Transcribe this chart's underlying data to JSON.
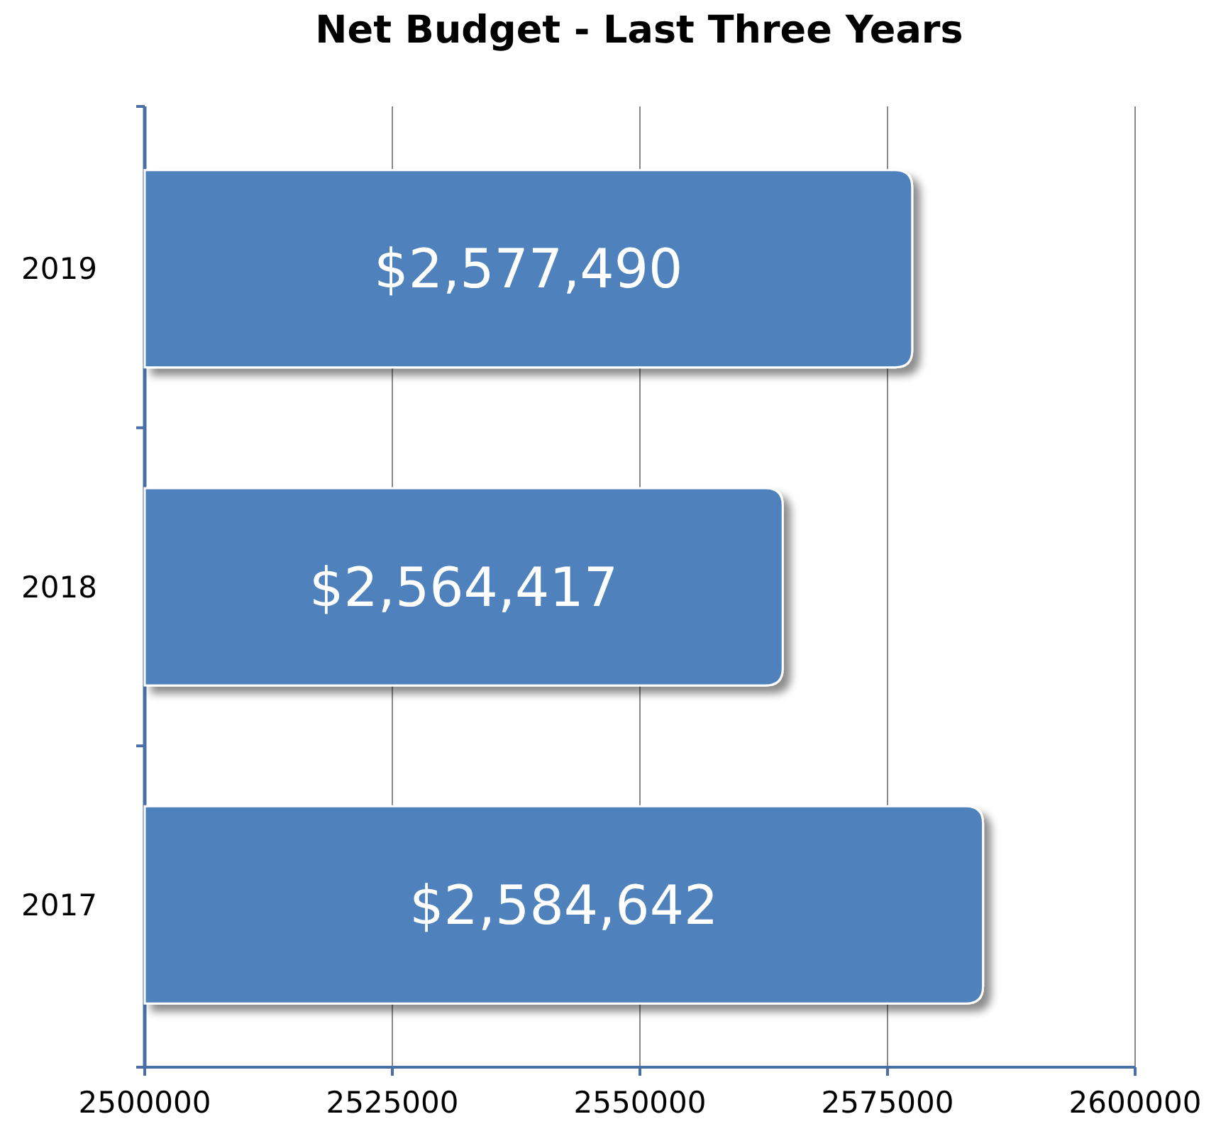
{
  "chart_data": {
    "type": "bar",
    "orientation": "horizontal",
    "title": "Net Budget - Last Three Years",
    "categories": [
      "2019",
      "2018",
      "2017"
    ],
    "values": [
      2577490,
      2564417,
      2584642
    ],
    "value_labels": [
      "$2,577,490",
      "$2,564,417",
      "$2,584,642"
    ],
    "color": "#4f81bd",
    "xlim": [
      2500000,
      2600000
    ],
    "xticks": [
      2500000,
      2525000,
      2550000,
      2575000,
      2600000
    ],
    "grid": "x"
  }
}
